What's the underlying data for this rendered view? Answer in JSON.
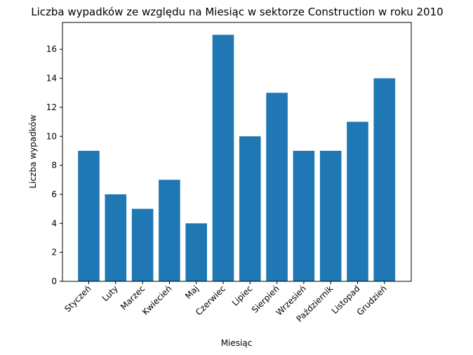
{
  "chart_data": {
    "type": "bar",
    "title": "Liczba wypadków ze względu na Miesiąc w sektorze Construction w roku 2010",
    "xlabel": "Miesiąc",
    "ylabel": "Liczba wypadków",
    "categories": [
      "Styczeń",
      "Luty",
      "Marzec",
      "Kwiecień",
      "Maj",
      "Czerwiec",
      "Lipiec",
      "Sierpień",
      "Wrzesień",
      "Październik",
      "Listopad",
      "Grudzień"
    ],
    "values": [
      9,
      6,
      5,
      7,
      4,
      17,
      10,
      13,
      9,
      9,
      11,
      14
    ],
    "ylim": [
      0,
      17.85
    ],
    "yticks": [
      0,
      2,
      4,
      6,
      8,
      10,
      12,
      14,
      16
    ],
    "grid": false,
    "bar_color": "#1f77b4"
  }
}
